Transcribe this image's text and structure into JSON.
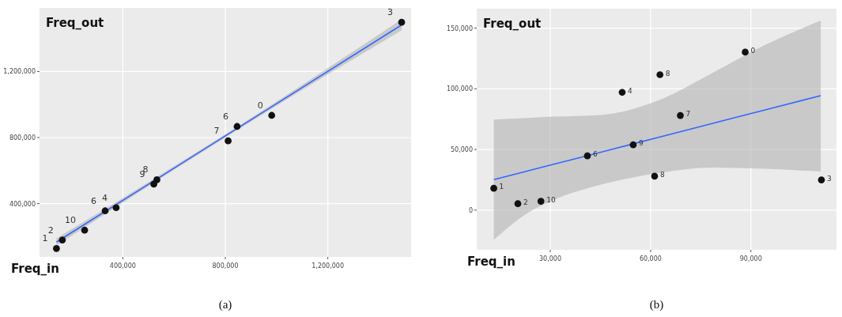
{
  "chart_data": [
    {
      "type": "scatter",
      "title": "(a)",
      "xlabel": "Freq_in",
      "ylabel": "Freq_out",
      "grid": true,
      "xlim": [
        75000,
        1525000
      ],
      "ylim": [
        77000,
        1585000
      ],
      "xticks": [
        {
          "value": 400000,
          "label": "400,000"
        },
        {
          "value": 800000,
          "label": "800,000"
        },
        {
          "value": 1200000,
          "label": "1,200,000"
        }
      ],
      "yticks": [
        {
          "value": 400000,
          "label": "400,000"
        },
        {
          "value": 800000,
          "label": "800,000"
        },
        {
          "value": 1200000,
          "label": "1,200,000"
        }
      ],
      "series": [
        {
          "marker": "circle",
          "color": "#111111",
          "x": [
            141000,
            164000,
            251000,
            331000,
            374000,
            521000,
            533000,
            811000,
            846000,
            981000,
            1488000
          ],
          "values": [
            128000,
            179000,
            239000,
            356000,
            375000,
            518000,
            544000,
            780000,
            867000,
            934000,
            1498000
          ]
        },
        {
          "type": "line",
          "marker": "none",
          "color": "#3366ff",
          "x": [
            141000,
            500000,
            1000000,
            1488000
          ],
          "values": [
            167000,
            517000,
            1005000,
            1482000
          ],
          "lower": [
            145000,
            505000,
            993000,
            1450000
          ],
          "upper": [
            190000,
            529000,
            1018000,
            1515000
          ]
        }
      ],
      "annotations": [
        {
          "text": "1",
          "x": 141000,
          "y": 128000
        },
        {
          "text": "2",
          "x": 164000,
          "y": 179000
        },
        {
          "text": "10",
          "x": 251000,
          "y": 239000
        },
        {
          "text": "6",
          "x": 331000,
          "y": 356000
        },
        {
          "text": "4",
          "x": 374000,
          "y": 375000
        },
        {
          "text": "9",
          "x": 521000,
          "y": 518000
        },
        {
          "text": "8",
          "x": 533000,
          "y": 544000
        },
        {
          "text": "7",
          "x": 811000,
          "y": 780000
        },
        {
          "text": "6",
          "x": 846000,
          "y": 867000
        },
        {
          "text": "0",
          "x": 981000,
          "y": 934000
        },
        {
          "text": "3",
          "x": 1488000,
          "y": 1498000
        }
      ]
    },
    {
      "type": "scatter",
      "title": "(b)",
      "xlabel": "Freq_in",
      "ylabel": "Freq_out",
      "grid": true,
      "xlim": [
        8000,
        115600
      ],
      "ylim": [
        -32700,
        166000
      ],
      "xticks": [
        {
          "value": 30000,
          "label": "30,000"
        },
        {
          "value": 60000,
          "label": "60,000"
        },
        {
          "value": 90000,
          "label": "90,000"
        }
      ],
      "yticks": [
        0,
        {
          "value": 50000,
          "label": "50,000"
        },
        {
          "value": 100000,
          "label": "100,000"
        },
        {
          "value": 150000,
          "label": "150,000"
        }
      ],
      "series": [
        {
          "marker": "circle",
          "color": "#111111",
          "x": [
            13100,
            20300,
            27200,
            41100,
            54800,
            51500,
            62800,
            88300,
            68900,
            61200,
            111100
          ],
          "values": [
            18000,
            5300,
            7300,
            44700,
            53800,
            97100,
            111600,
            130200,
            78000,
            28000,
            24900
          ]
        },
        {
          "type": "line",
          "marker": "none",
          "color": "#3366ff",
          "x": [
            13100,
            23000,
            31000,
            45200,
            62600,
            78400,
            94300,
            110900
          ],
          "values": [
            25100,
            32100,
            37800,
            47800,
            60200,
            71400,
            82600,
            94400
          ],
          "lower": [
            -24400,
            -2700,
            8400,
            21000,
            30700,
            35100,
            34000,
            31800
          ],
          "upper": [
            74700,
            76000,
            77000,
            78400,
            90700,
            112900,
            136200,
            156200
          ]
        }
      ],
      "annotations": [
        {
          "text": "1",
          "x": 13100,
          "y": 18000
        },
        {
          "text": "2",
          "x": 20300,
          "y": 5300
        },
        {
          "text": "10",
          "x": 27200,
          "y": 7300
        },
        {
          "text": "6",
          "x": 41100,
          "y": 44700
        },
        {
          "text": "9",
          "x": 54800,
          "y": 53800
        },
        {
          "text": "4",
          "x": 51500,
          "y": 97100
        },
        {
          "text": "8",
          "x": 62800,
          "y": 111600
        },
        {
          "text": "0",
          "x": 88300,
          "y": 130200
        },
        {
          "text": "7",
          "x": 68900,
          "y": 78000
        },
        {
          "text": "8",
          "x": 61200,
          "y": 28000
        },
        {
          "text": "3",
          "x": 111100,
          "y": 24900
        }
      ]
    }
  ]
}
